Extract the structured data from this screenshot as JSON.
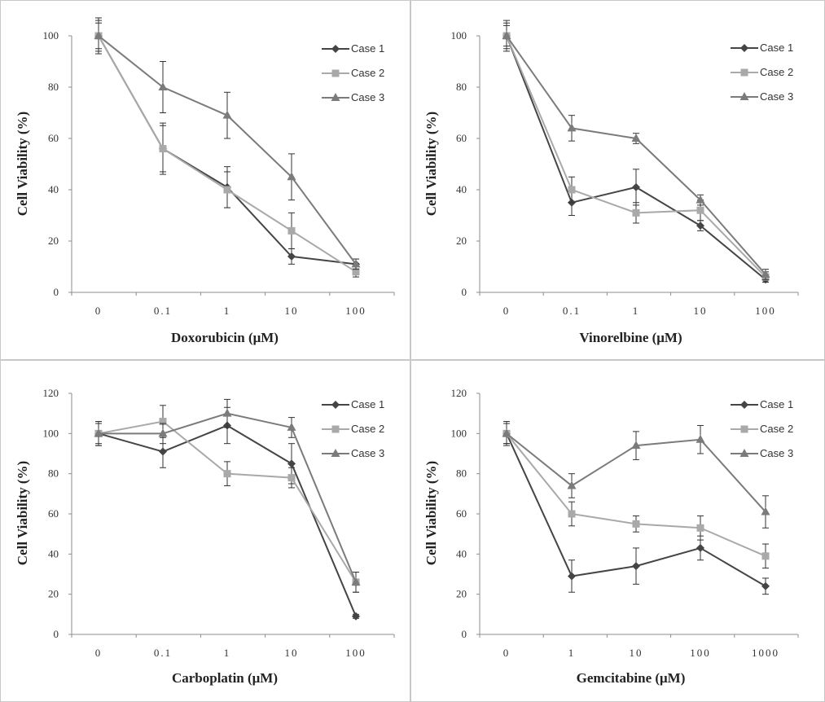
{
  "figure": {
    "style": {
      "series_colors": [
        "#454545",
        "#a9a9a9",
        "#7b7b7b"
      ],
      "series_markers": [
        "diamond",
        "square",
        "triangle"
      ],
      "border_color": "#c8c8c8",
      "axis_color": "#8c8c8c"
    }
  },
  "chart_data": [
    {
      "type": "line",
      "title": "",
      "xlabel": "Doxorubicin  (μM)",
      "ylabel": "Cell Viability  (%)",
      "categories": [
        "0",
        "0.1",
        "1",
        "10",
        "100"
      ],
      "ylim": [
        0,
        100
      ],
      "yticks": [
        "0",
        "20",
        "40",
        "60",
        "80",
        "100"
      ],
      "legend_position": "top-right",
      "series": [
        {
          "name": "Case 1",
          "values": [
            100,
            56,
            41,
            14,
            11
          ],
          "errors": [
            7,
            9,
            8,
            3,
            2
          ]
        },
        {
          "name": "Case 2",
          "values": [
            100,
            56,
            40,
            24,
            8
          ],
          "errors": [
            6,
            10,
            7,
            7,
            2
          ]
        },
        {
          "name": "Case 3",
          "values": [
            100,
            80,
            69,
            45,
            11
          ],
          "errors": [
            5,
            10,
            9,
            9,
            2
          ]
        }
      ]
    },
    {
      "type": "line",
      "title": "",
      "xlabel": "Vinorelbine  (μM)",
      "ylabel": "Cell Viability  (%)",
      "categories": [
        "0",
        "0.1",
        "1",
        "10",
        "100"
      ],
      "ylim": [
        0,
        100
      ],
      "yticks": [
        "0",
        "20",
        "40",
        "60",
        "80",
        "100"
      ],
      "legend_position": "top-right",
      "series": [
        {
          "name": "Case 1",
          "values": [
            100,
            35,
            41,
            26,
            5
          ],
          "errors": [
            6,
            5,
            7,
            2,
            1
          ]
        },
        {
          "name": "Case 2",
          "values": [
            100,
            40,
            31,
            32,
            6
          ],
          "errors": [
            5,
            5,
            4,
            4,
            2
          ]
        },
        {
          "name": "Case 3",
          "values": [
            100,
            64,
            60,
            36,
            7
          ],
          "errors": [
            4,
            5,
            2,
            2,
            2
          ]
        }
      ]
    },
    {
      "type": "line",
      "title": "",
      "xlabel": "Carboplatin  (μM)",
      "ylabel": "Cell Viability  (%)",
      "categories": [
        "0",
        "0.1",
        "1",
        "10",
        "100"
      ],
      "ylim": [
        0,
        120
      ],
      "yticks": [
        "0",
        "20",
        "40",
        "60",
        "80",
        "100",
        "120"
      ],
      "legend_position": "top-right",
      "series": [
        {
          "name": "Case 1",
          "values": [
            100,
            91,
            104,
            85,
            9
          ],
          "errors": [
            6,
            8,
            9,
            10,
            1
          ]
        },
        {
          "name": "Case 2",
          "values": [
            100,
            106,
            80,
            78,
            26
          ],
          "errors": [
            6,
            8,
            6,
            5,
            5
          ]
        },
        {
          "name": "Case 3",
          "values": [
            100,
            100,
            110,
            103,
            26
          ],
          "errors": [
            5,
            5,
            7,
            5,
            5
          ]
        }
      ]
    },
    {
      "type": "line",
      "title": "",
      "xlabel": "Gemcitabine  (μM)",
      "ylabel": "Cell Viability  (%)",
      "categories": [
        "0",
        "1",
        "10",
        "100",
        "1000"
      ],
      "ylim": [
        0,
        120
      ],
      "yticks": [
        "0",
        "20",
        "40",
        "60",
        "80",
        "100",
        "120"
      ],
      "legend_position": "top-right",
      "series": [
        {
          "name": "Case 1",
          "values": [
            100,
            29,
            34,
            43,
            24
          ],
          "errors": [
            6,
            8,
            9,
            6,
            4
          ]
        },
        {
          "name": "Case 2",
          "values": [
            100,
            60,
            55,
            53,
            39
          ],
          "errors": [
            5,
            6,
            4,
            6,
            6
          ]
        },
        {
          "name": "Case 3",
          "values": [
            100,
            74,
            94,
            97,
            61
          ],
          "errors": [
            5,
            6,
            7,
            7,
            8
          ]
        }
      ]
    }
  ]
}
